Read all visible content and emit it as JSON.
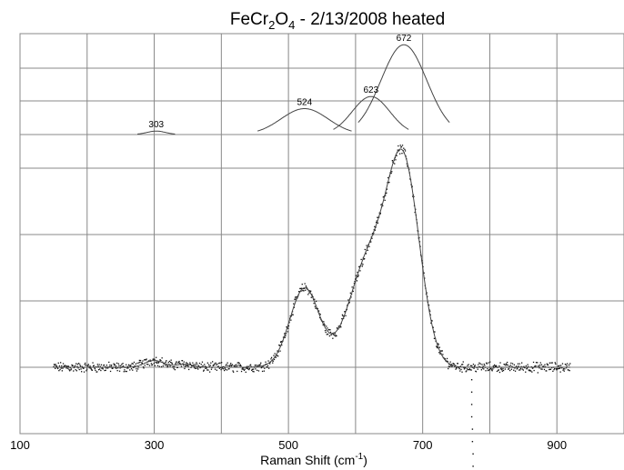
{
  "chart_data": {
    "type": "scatter",
    "title": {
      "formula_main": "FeCr",
      "sub1": "2",
      "formula_mid": "O",
      "sub2": "4",
      "rest": " - 2/13/2008 heated"
    },
    "xlabel": {
      "prefix": "Raman Shift (cm",
      "sup": "-1",
      "suffix": ")"
    },
    "ylabel": "",
    "x_ticks": [
      "100",
      "300",
      "500",
      "700",
      "900"
    ],
    "xlim": [
      100,
      1000
    ],
    "grid": true,
    "peaks": [
      {
        "label": "303",
        "center": 303,
        "amplitude": 0.2,
        "width": 14
      },
      {
        "label": "524",
        "center": 524,
        "amplitude": 1.5,
        "width": 35
      },
      {
        "label": "623",
        "center": 623,
        "amplitude": 2.2,
        "width": 28
      },
      {
        "label": "672",
        "center": 672,
        "amplitude": 5.2,
        "width": 34
      }
    ],
    "spectrum": {
      "x_range": [
        150,
        920
      ],
      "baseline": 0,
      "components": [
        {
          "center": 300,
          "amplitude": 0.22,
          "width": 14
        },
        {
          "center": 345,
          "amplitude": 0.1,
          "width": 12
        },
        {
          "center": 524,
          "amplitude": 2.55,
          "width": 22
        },
        {
          "center": 620,
          "amplitude": 3.4,
          "width": 30
        },
        {
          "center": 672,
          "amplitude": 6.2,
          "width": 24
        }
      ],
      "outlier_points": [
        [
          773,
          -0.4
        ],
        [
          773,
          -0.8
        ],
        [
          773,
          -1.2
        ],
        [
          773,
          -1.6
        ],
        [
          774,
          -2.0
        ],
        [
          774,
          -2.4
        ],
        [
          775,
          -2.8
        ],
        [
          775,
          -3.2
        ],
        [
          775,
          -3.6
        ],
        [
          776,
          -3.9
        ]
      ]
    }
  }
}
